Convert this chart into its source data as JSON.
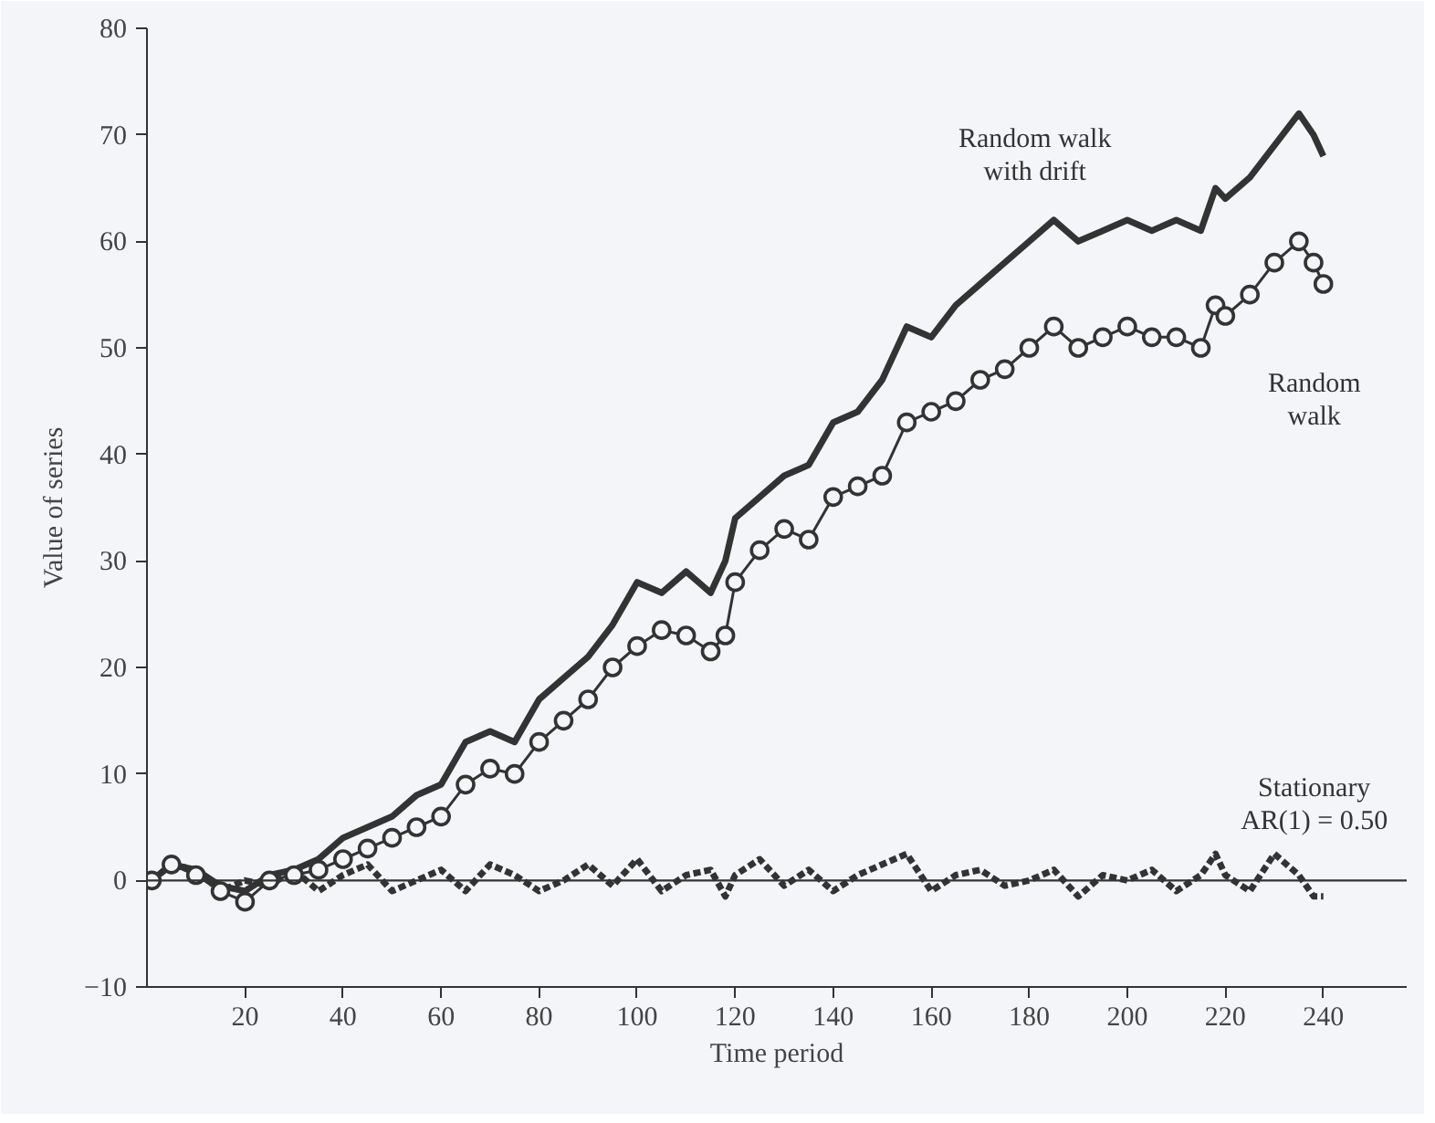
{
  "chart_data": {
    "type": "line",
    "xlabel": "Time period",
    "ylabel": "Value of series",
    "x": [
      1,
      5,
      10,
      15,
      20,
      25,
      30,
      35,
      40,
      45,
      50,
      55,
      60,
      65,
      70,
      75,
      80,
      85,
      90,
      95,
      100,
      105,
      110,
      115,
      118,
      120,
      125,
      130,
      135,
      140,
      145,
      150,
      155,
      160,
      165,
      170,
      175,
      180,
      185,
      190,
      195,
      200,
      205,
      210,
      215,
      218,
      220,
      225,
      230,
      235,
      238,
      240
    ],
    "series": [
      {
        "name": "Random walk\nwith drift",
        "color": "#333333",
        "values": [
          0,
          1.5,
          1,
          -0.5,
          -1,
          0.5,
          1,
          2,
          4,
          5,
          6,
          8,
          9,
          13,
          14,
          13,
          17,
          19,
          21,
          24,
          28,
          27,
          29,
          27,
          30,
          34,
          36,
          38,
          39,
          43,
          44,
          47,
          52,
          51,
          54,
          56,
          58,
          60,
          62,
          60,
          61,
          62,
          61,
          62,
          61,
          65,
          64,
          66,
          69,
          72,
          70,
          68
        ]
      },
      {
        "name": "Random\nwalk",
        "color": "#333333",
        "marker": "circle",
        "values": [
          0,
          1.5,
          0.5,
          -1,
          -2,
          0,
          0.5,
          1,
          2,
          3,
          4,
          5,
          6,
          9,
          10.5,
          10,
          13,
          15,
          17,
          20,
          22,
          23.5,
          23,
          21.5,
          23,
          28,
          31,
          33,
          32,
          36,
          37,
          38,
          43,
          44,
          45,
          47,
          48,
          50,
          52,
          50,
          51,
          52,
          51,
          51,
          50,
          54,
          53,
          55,
          58,
          60,
          58,
          56
        ]
      },
      {
        "name": "Stationary\nAR(1) = 0.50",
        "color": "#333333",
        "line_style": "dashed",
        "values": [
          0,
          1.5,
          1,
          -1,
          0,
          -0.5,
          1,
          -1,
          0.5,
          1.5,
          -1,
          0,
          1,
          -1,
          1.5,
          0.5,
          -1,
          0,
          1.5,
          -0.5,
          2,
          -1,
          0.5,
          1,
          -1.5,
          0.5,
          2,
          -0.5,
          1,
          -1,
          0.5,
          1.5,
          2.5,
          -1,
          0.5,
          1,
          -0.5,
          0,
          1,
          -1.5,
          0.5,
          0,
          1,
          -1,
          0.5,
          2.5,
          0.5,
          -1,
          2.5,
          0.5,
          -1.5,
          -1.5
        ]
      }
    ],
    "xlim": [
      0,
      257
    ],
    "ylim": [
      -10,
      80
    ],
    "xticks": [
      20,
      40,
      60,
      80,
      100,
      120,
      140,
      160,
      180,
      200,
      220,
      240
    ],
    "yticks": [
      {
        "value": -10,
        "label": "−10"
      },
      0,
      10,
      20,
      30,
      40,
      50,
      60,
      70,
      80
    ],
    "grid": false,
    "legend": false,
    "ref_lines": [
      {
        "axis": "y",
        "value": 0,
        "color": "#333333"
      }
    ]
  }
}
